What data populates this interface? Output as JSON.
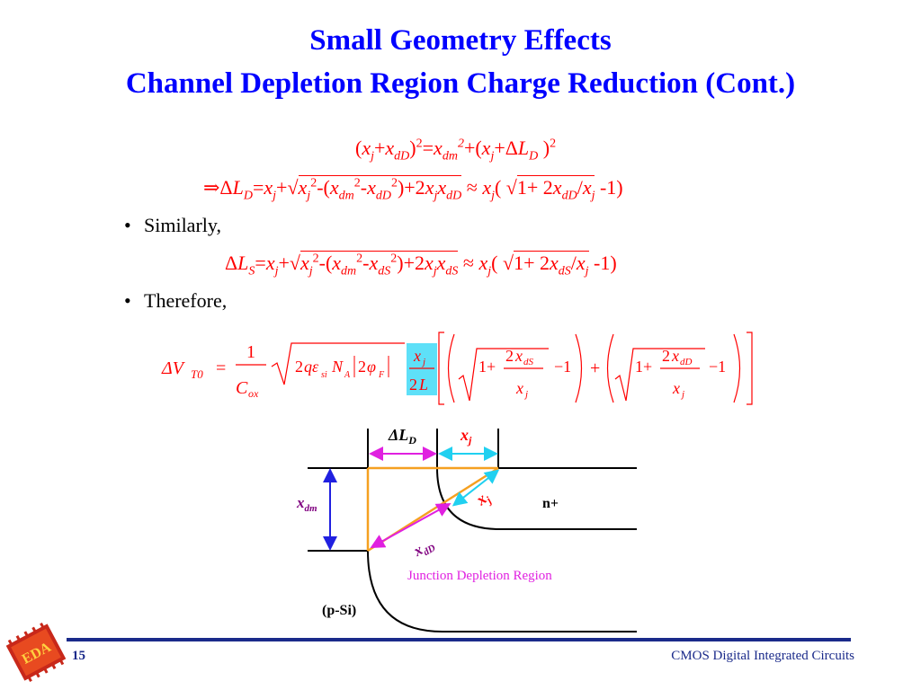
{
  "slide": {
    "title_line1": "Small Geometry Effects",
    "title_line2": "Channel Depletion Region Charge Reduction (Cont.)",
    "bullet1": "Similarly,",
    "bullet2": "Therefore,",
    "page_number": "15",
    "footer": "CMOS Digital Integrated Circuits"
  },
  "diagram": {
    "label_delta_ld": "ΔL",
    "label_delta_ld_sub": "D",
    "label_xj_top": "x",
    "label_xj_top_sub": "j",
    "label_xj_diag": "x",
    "label_xj_diag_sub": "j",
    "label_xdm": "x",
    "label_xdm_sub": "dm",
    "label_xdd": "x",
    "label_xdd_sub": "dD",
    "label_nplus": "n+",
    "label_junction": "Junction Depletion Region",
    "label_psi": "(p-Si)"
  },
  "logo": {
    "text": "EDA"
  },
  "colors": {
    "title": "#0000ff",
    "equation": "#ff0000",
    "orange": "#f5a020",
    "magenta": "#e020e0",
    "cyan": "#20d0f0",
    "blue_arrow": "#2020e0",
    "footer": "#1a2a8a"
  }
}
